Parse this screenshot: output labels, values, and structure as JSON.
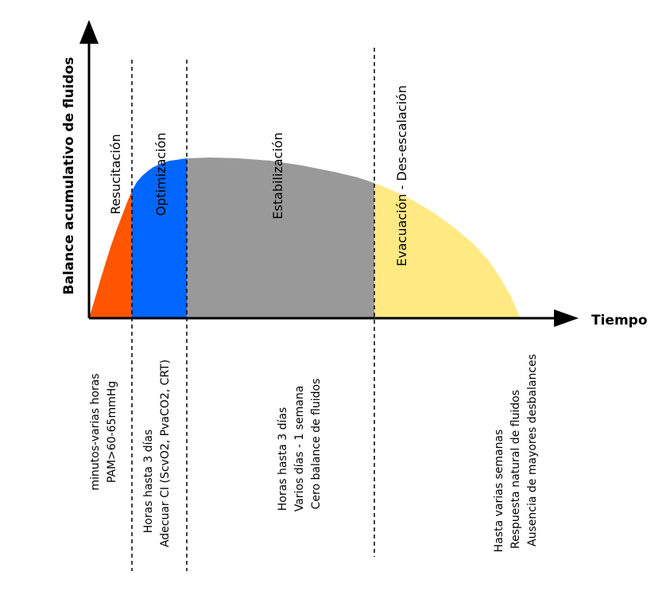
{
  "axes": {
    "y_label": "Balance acumulativo de fluidos",
    "x_label": "Tiempo"
  },
  "colors": {
    "resucitacion": "#FF5500",
    "optimizacion": "#0066FF",
    "estabilizacion": "#999999",
    "evacuacion": "#FFE983"
  },
  "phases": [
    {
      "label": "Resucitación",
      "notes": [
        "minutos-varias horas",
        "PAM>60-65mmHg"
      ]
    },
    {
      "label": "Optimización",
      "notes": [
        "Horas hasta 3 días",
        "Adecuar CI (ScvO2, PvaCO2, CRT)"
      ]
    },
    {
      "label": "Estabilización",
      "notes": [
        "Horas hasta 3 días",
        "Varios días - 1 semana",
        "Cero balance de fluidos"
      ]
    },
    {
      "label": "Evacuación - Des-escalación",
      "notes": [
        "Hasta varias semanas",
        "Respuesta natural de fluidos",
        "Ausencia de mayores desbalances"
      ]
    }
  ]
}
